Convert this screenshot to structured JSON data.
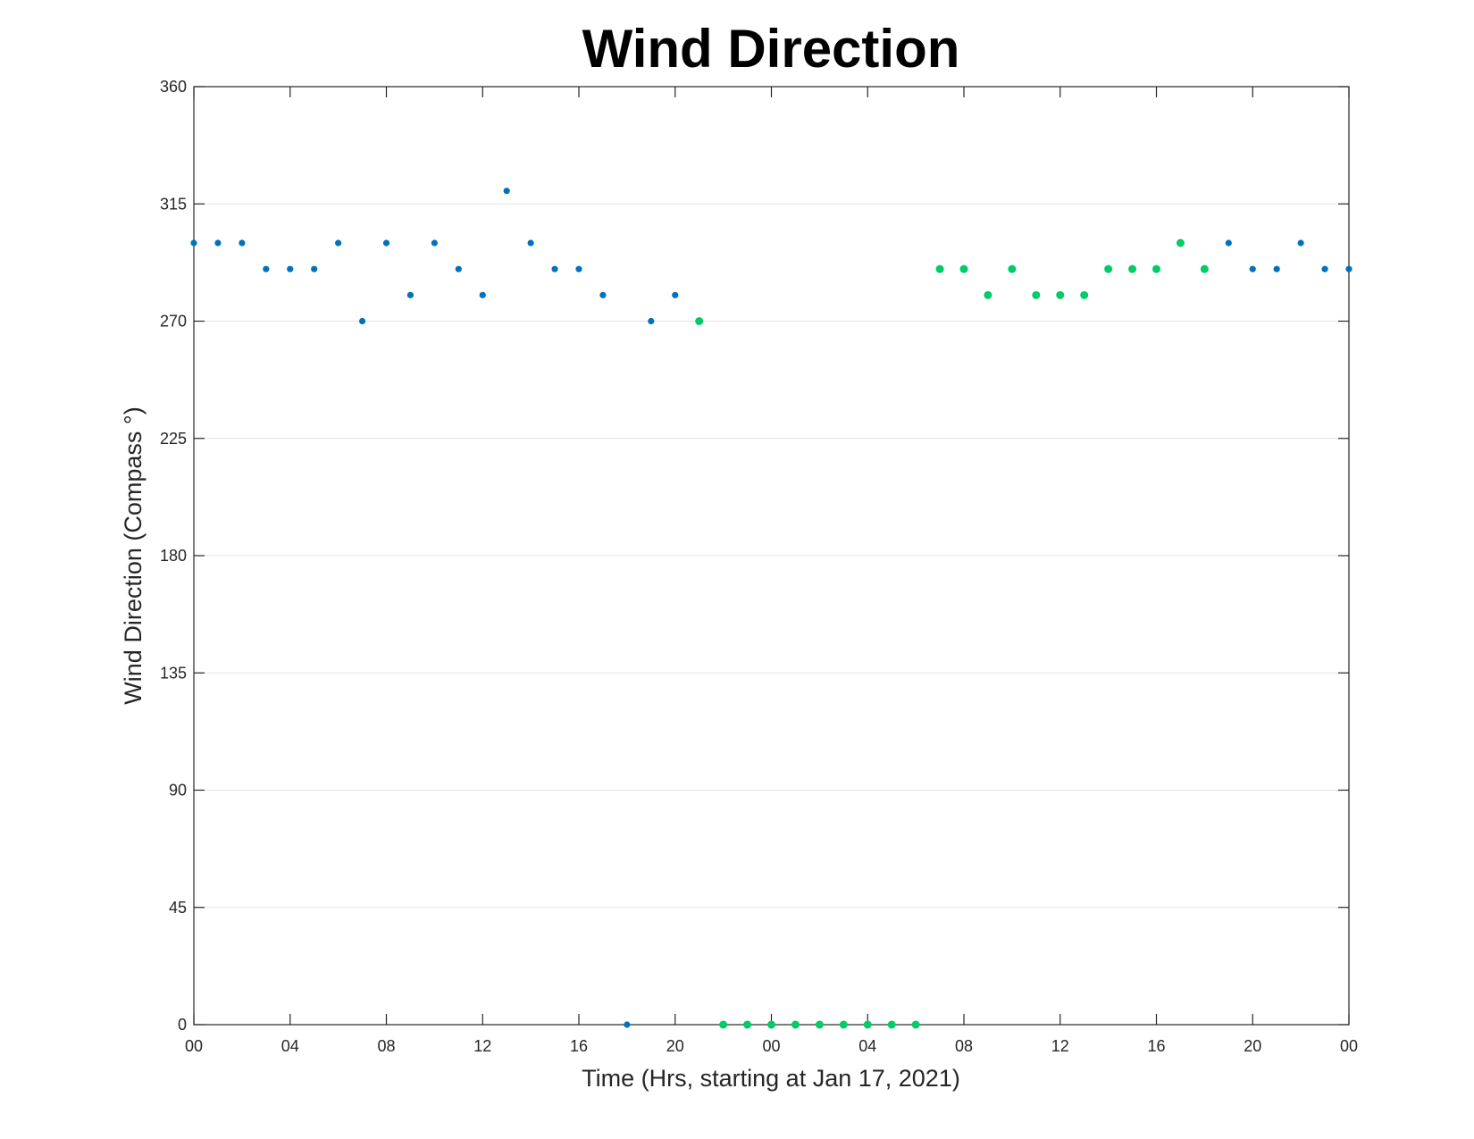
{
  "chart_data": {
    "type": "scatter",
    "title": "Wind Direction",
    "xlabel": "Time (Hrs, starting at Jan 17, 2021)",
    "ylabel": "Wind Direction (Compass °)",
    "ylim": [
      0,
      360
    ],
    "xlim": [
      "Jan 17, 2021 00:00",
      "Jan 19, 2021 00:00"
    ],
    "grid": "horizontal",
    "x_tick_labels": [
      "00",
      "04",
      "08",
      "12",
      "16",
      "20",
      "00",
      "04",
      "08",
      "12",
      "16",
      "20",
      "00"
    ],
    "y_tick_labels": [
      "0",
      "45",
      "90",
      "135",
      "180",
      "225",
      "270",
      "315",
      "360"
    ],
    "colors": {
      "blue": "#0072BD",
      "green": "#00CC66",
      "axis": "#262626",
      "grid": "#E3E3E3"
    },
    "series": [
      {
        "color": "blue",
        "points": [
          [
            "Jan 17, 2021 00:00",
            300
          ],
          [
            "Jan 17, 2021 01:00",
            300
          ],
          [
            "Jan 17, 2021 02:00",
            300
          ],
          [
            "Jan 17, 2021 03:00",
            290
          ],
          [
            "Jan 17, 2021 04:00",
            290
          ],
          [
            "Jan 17, 2021 05:00",
            290
          ],
          [
            "Jan 17, 2021 06:00",
            300
          ],
          [
            "Jan 17, 2021 07:00",
            270
          ],
          [
            "Jan 17, 2021 08:00",
            300
          ],
          [
            "Jan 17, 2021 09:00",
            280
          ],
          [
            "Jan 17, 2021 10:00",
            300
          ],
          [
            "Jan 17, 2021 11:00",
            290
          ],
          [
            "Jan 17, 2021 12:00",
            280
          ],
          [
            "Jan 17, 2021 13:00",
            320
          ],
          [
            "Jan 17, 2021 14:00",
            300
          ],
          [
            "Jan 17, 2021 15:00",
            290
          ],
          [
            "Jan 17, 2021 16:00",
            290
          ],
          [
            "Jan 17, 2021 17:00",
            280
          ],
          [
            "Jan 17, 2021 18:00",
            0
          ],
          [
            "Jan 17, 2021 19:00",
            270
          ],
          [
            "Jan 17, 2021 20:00",
            280
          ],
          [
            "Jan 18, 2021 19:00",
            300
          ],
          [
            "Jan 18, 2021 20:00",
            290
          ],
          [
            "Jan 18, 2021 21:00",
            290
          ],
          [
            "Jan 18, 2021 22:00",
            300
          ],
          [
            "Jan 18, 2021 23:00",
            290
          ],
          [
            "Jan 19, 2021 00:00",
            290
          ]
        ]
      },
      {
        "color": "green",
        "points": [
          [
            "Jan 17, 2021 21:00",
            270
          ],
          [
            "Jan 17, 2021 22:00",
            0
          ],
          [
            "Jan 17, 2021 23:00",
            0
          ],
          [
            "Jan 18, 2021 00:00",
            0
          ],
          [
            "Jan 18, 2021 01:00",
            0
          ],
          [
            "Jan 18, 2021 02:00",
            0
          ],
          [
            "Jan 18, 2021 03:00",
            0
          ],
          [
            "Jan 18, 2021 04:00",
            0
          ],
          [
            "Jan 18, 2021 05:00",
            0
          ],
          [
            "Jan 18, 2021 06:00",
            0
          ],
          [
            "Jan 18, 2021 07:00",
            290
          ],
          [
            "Jan 18, 2021 08:00",
            290
          ],
          [
            "Jan 18, 2021 09:00",
            280
          ],
          [
            "Jan 18, 2021 10:00",
            290
          ],
          [
            "Jan 18, 2021 11:00",
            280
          ],
          [
            "Jan 18, 2021 12:00",
            280
          ],
          [
            "Jan 18, 2021 13:00",
            280
          ],
          [
            "Jan 18, 2021 14:00",
            290
          ],
          [
            "Jan 18, 2021 15:00",
            290
          ],
          [
            "Jan 18, 2021 16:00",
            290
          ],
          [
            "Jan 18, 2021 17:00",
            300
          ],
          [
            "Jan 18, 2021 18:00",
            290
          ]
        ]
      }
    ]
  }
}
